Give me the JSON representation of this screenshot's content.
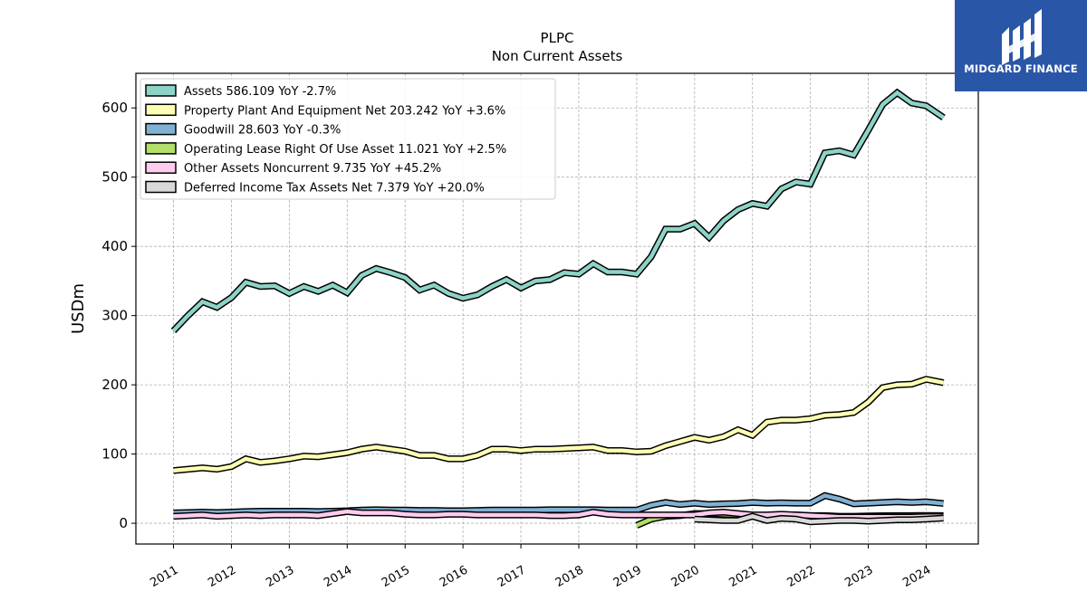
{
  "header": {
    "title": "PLPC",
    "subtitle": "Non Current  Assets"
  },
  "logo": {
    "text": "MIDGARD FINANCE",
    "icon": "midgard-m-logo",
    "background": "#2a56a8"
  },
  "chart_data": {
    "type": "line",
    "ylabel": "USDm",
    "xlabel": "",
    "ylim": [
      -30,
      650
    ],
    "xlim": [
      2010.35,
      2024.9
    ],
    "yticks": [
      0,
      100,
      200,
      300,
      400,
      500,
      600
    ],
    "xticks": [
      "2011",
      "2012",
      "2013",
      "2014",
      "2015",
      "2016",
      "2017",
      "2018",
      "2019",
      "2020",
      "2021",
      "2022",
      "2023",
      "2024"
    ],
    "grid": true,
    "legend_position": "top-left",
    "series": [
      {
        "name": "Assets  586.109 YoY -2.7%",
        "color": "#8dd3c7",
        "x": [
          2011.0,
          2011.25,
          2011.5,
          2011.75,
          2012.0,
          2012.25,
          2012.5,
          2012.75,
          2013.0,
          2013.25,
          2013.5,
          2013.75,
          2014.0,
          2014.25,
          2014.5,
          2014.75,
          2015.0,
          2015.25,
          2015.5,
          2015.75,
          2016.0,
          2016.25,
          2016.5,
          2016.75,
          2017.0,
          2017.25,
          2017.5,
          2017.75,
          2018.0,
          2018.25,
          2018.5,
          2018.75,
          2019.0,
          2019.25,
          2019.5,
          2019.75,
          2020.0,
          2020.25,
          2020.5,
          2020.75,
          2021.0,
          2021.25,
          2021.5,
          2021.75,
          2022.0,
          2022.25,
          2022.5,
          2022.75,
          2023.0,
          2023.25,
          2023.5,
          2023.75,
          2024.0,
          2024.3
        ],
        "values": [
          278,
          300,
          320,
          312,
          326,
          348,
          342,
          343,
          332,
          342,
          335,
          344,
          333,
          358,
          368,
          362,
          355,
          337,
          344,
          332,
          325,
          330,
          342,
          352,
          340,
          350,
          352,
          362,
          360,
          375,
          363,
          363,
          360,
          385,
          425,
          425,
          433,
          413,
          437,
          453,
          462,
          458,
          483,
          493,
          490,
          535,
          538,
          532,
          568,
          605,
          622,
          607,
          603,
          586
        ]
      },
      {
        "name": "Property Plant And Equipment Net  203.242 YoY +3.6%",
        "color": "#ffffb3",
        "x": [
          2011.0,
          2011.25,
          2011.5,
          2011.75,
          2012.0,
          2012.25,
          2012.5,
          2012.75,
          2013.0,
          2013.25,
          2013.5,
          2013.75,
          2014.0,
          2014.25,
          2014.5,
          2014.75,
          2015.0,
          2015.25,
          2015.5,
          2015.75,
          2016.0,
          2016.25,
          2016.5,
          2016.75,
          2017.0,
          2017.25,
          2017.5,
          2017.75,
          2018.0,
          2018.25,
          2018.5,
          2018.75,
          2019.0,
          2019.25,
          2019.5,
          2019.75,
          2020.0,
          2020.25,
          2020.5,
          2020.75,
          2021.0,
          2021.25,
          2021.5,
          2021.75,
          2022.0,
          2022.25,
          2022.5,
          2022.75,
          2023.0,
          2023.25,
          2023.5,
          2023.75,
          2024.0,
          2024.3
        ],
        "values": [
          76,
          78,
          80,
          78,
          82,
          93,
          88,
          90,
          93,
          97,
          96,
          99,
          102,
          107,
          110,
          107,
          104,
          98,
          98,
          93,
          93,
          98,
          107,
          107,
          105,
          107,
          107,
          108,
          109,
          110,
          105,
          105,
          103,
          104,
          112,
          118,
          124,
          120,
          125,
          135,
          127,
          146,
          149,
          149,
          151,
          156,
          157,
          160,
          175,
          196,
          200,
          201,
          208,
          203
        ]
      },
      {
        "name": "Goodwill  28.603 YoY -0.3%",
        "color": "#80b1d3",
        "x": [
          2011.0,
          2011.25,
          2011.5,
          2011.75,
          2012.0,
          2012.25,
          2012.5,
          2012.75,
          2013.0,
          2013.25,
          2013.5,
          2013.75,
          2014.0,
          2014.25,
          2014.5,
          2014.75,
          2015.0,
          2015.25,
          2015.5,
          2015.75,
          2016.0,
          2016.25,
          2016.5,
          2016.75,
          2017.0,
          2017.25,
          2017.5,
          2017.75,
          2018.0,
          2018.25,
          2018.5,
          2018.75,
          2019.0,
          2019.25,
          2019.5,
          2019.75,
          2020.0,
          2020.25,
          2020.5,
          2020.75,
          2021.0,
          2021.25,
          2021.5,
          2021.75,
          2022.0,
          2022.25,
          2022.5,
          2022.75,
          2023.0,
          2023.25,
          2023.5,
          2023.75,
          2024.0,
          2024.3
        ],
        "values": [
          15,
          15.5,
          16,
          15.5,
          16,
          17,
          17.5,
          17.5,
          17.5,
          17.5,
          17,
          17.5,
          18,
          19,
          19.5,
          19,
          19,
          18.5,
          18.5,
          18,
          18,
          18.5,
          19,
          19,
          19,
          19,
          19.5,
          19.5,
          19.5,
          19.5,
          19,
          19,
          19,
          26,
          30,
          27,
          29,
          27,
          28,
          28.5,
          30,
          29,
          29.5,
          29,
          29,
          40,
          35,
          28,
          29,
          30,
          31,
          30,
          31,
          28.6
        ]
      },
      {
        "name": "Operating Lease Right Of Use Asset  11.021 YoY +2.5%",
        "color": "#b3de69",
        "x": [
          2019.0,
          2019.25,
          2019.5,
          2019.75,
          2020.0,
          2020.25,
          2020.5,
          2020.75,
          2021.0,
          2021.25,
          2021.5,
          2021.75,
          2022.0,
          2022.25,
          2022.5,
          2022.75,
          2023.0,
          2023.25,
          2023.5,
          2023.75,
          2024.0,
          2024.3
        ],
        "values": [
          -3,
          6,
          10,
          11,
          14,
          14,
          13,
          12,
          11,
          11,
          12,
          12,
          11,
          11,
          10,
          10,
          10.5,
          10.8,
          11,
          11,
          11.2,
          11.0
        ]
      },
      {
        "name": "Other Assets Noncurrent  9.735 YoY +45.2%",
        "color": "#ffccee",
        "x": [
          2011.0,
          2011.25,
          2011.5,
          2011.75,
          2012.0,
          2012.25,
          2012.5,
          2012.75,
          2013.0,
          2013.25,
          2013.5,
          2013.75,
          2014.0,
          2014.25,
          2014.5,
          2014.75,
          2015.0,
          2015.25,
          2015.5,
          2015.75,
          2016.0,
          2016.25,
          2016.5,
          2016.75,
          2017.0,
          2017.25,
          2017.5,
          2017.75,
          2018.0,
          2018.25,
          2018.5,
          2018.75,
          2019.0,
          2019.25,
          2019.5,
          2019.75,
          2020.0,
          2020.25,
          2020.5,
          2020.75,
          2021.0,
          2021.25,
          2021.5,
          2021.75,
          2022.0,
          2022.25,
          2022.5,
          2022.75,
          2023.0,
          2023.25,
          2023.5,
          2023.75,
          2024.0,
          2024.3
        ],
        "values": [
          10,
          11,
          12,
          10,
          11,
          12,
          11,
          12,
          12,
          12,
          11,
          14,
          17,
          15,
          15,
          15,
          13,
          12,
          12,
          13,
          13,
          12,
          12,
          12,
          12,
          12,
          11,
          11,
          12,
          16,
          13,
          12,
          12,
          12,
          12,
          12,
          12,
          15,
          16,
          14,
          12,
          12,
          13,
          12,
          11,
          10,
          9,
          9,
          9,
          9,
          9,
          9,
          9.5,
          9.7
        ]
      },
      {
        "name": "Deferred Income Tax Assets Net  7.379 YoY +20.0%",
        "color": "#d9d9d9",
        "x": [
          2020.0,
          2020.25,
          2020.5,
          2020.75,
          2021.0,
          2021.25,
          2021.5,
          2021.75,
          2022.0,
          2022.25,
          2022.5,
          2022.75,
          2023.0,
          2023.25,
          2023.5,
          2023.75,
          2024.0,
          2024.3
        ],
        "values": [
          6,
          5,
          4,
          4,
          10,
          4,
          7,
          6,
          2,
          3,
          4,
          4,
          3,
          4,
          5,
          5,
          6,
          7.4
        ]
      }
    ]
  }
}
